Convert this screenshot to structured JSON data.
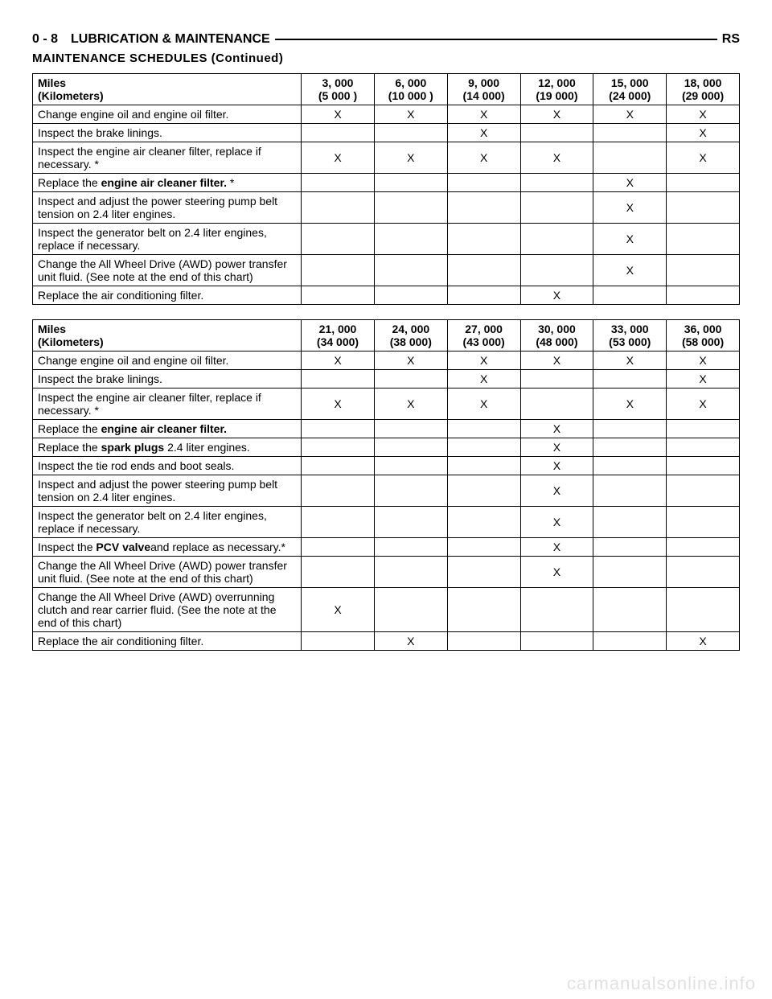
{
  "header": {
    "left": "0 - 8 LUBRICATION & MAINTENANCE",
    "right": "RS",
    "sub": "MAINTENANCE SCHEDULES (Continued)"
  },
  "tables": [
    {
      "miles_label": "Miles",
      "km_label": "(Kilometers)",
      "intervals": [
        {
          "miles": "3, 000",
          "km": "(5 000 )"
        },
        {
          "miles": "6, 000",
          "km": "(10 000 )"
        },
        {
          "miles": "9, 000",
          "km": "(14 000)"
        },
        {
          "miles": "12, 000",
          "km": "(19 000)"
        },
        {
          "miles": "15, 000",
          "km": "(24 000)"
        },
        {
          "miles": "18, 000",
          "km": "(29 000)"
        }
      ],
      "rows": [
        {
          "text_parts": [
            {
              "t": "Change engine oil and engine oil filter."
            }
          ],
          "marks": [
            "X",
            "X",
            "X",
            "X",
            "X",
            "X"
          ]
        },
        {
          "text_parts": [
            {
              "t": "Inspect the brake linings."
            }
          ],
          "marks": [
            "",
            "",
            "X",
            "",
            "",
            "X"
          ]
        },
        {
          "text_parts": [
            {
              "t": "Inspect the engine air cleaner filter, replace if necessary. *"
            }
          ],
          "marks": [
            "X",
            "X",
            "X",
            "X",
            "",
            "X"
          ]
        },
        {
          "text_parts": [
            {
              "t": "Replace the "
            },
            {
              "t": "engine air cleaner filter.",
              "b": true
            },
            {
              "t": " *"
            }
          ],
          "marks": [
            "",
            "",
            "",
            "",
            "X",
            ""
          ]
        },
        {
          "text_parts": [
            {
              "t": "Inspect and adjust the power steering pump belt tension on 2.4 liter engines."
            }
          ],
          "marks": [
            "",
            "",
            "",
            "",
            "X",
            ""
          ]
        },
        {
          "text_parts": [
            {
              "t": "Inspect the generator belt on 2.4 liter engines, replace if necessary."
            }
          ],
          "marks": [
            "",
            "",
            "",
            "",
            "X",
            ""
          ]
        },
        {
          "text_parts": [
            {
              "t": "Change the All Wheel Drive (AWD) power transfer unit fluid. (See note at the end of this chart)"
            }
          ],
          "marks": [
            "",
            "",
            "",
            "",
            "X",
            ""
          ]
        },
        {
          "text_parts": [
            {
              "t": "Replace the air conditioning filter."
            }
          ],
          "marks": [
            "",
            "",
            "",
            "X",
            "",
            ""
          ]
        }
      ]
    },
    {
      "miles_label": "Miles",
      "km_label": "(Kilometers)",
      "intervals": [
        {
          "miles": "21, 000",
          "km": "(34 000)"
        },
        {
          "miles": "24, 000",
          "km": "(38 000)"
        },
        {
          "miles": "27, 000",
          "km": "(43 000)"
        },
        {
          "miles": "30, 000",
          "km": "(48 000)"
        },
        {
          "miles": "33, 000",
          "km": "(53 000)"
        },
        {
          "miles": "36, 000",
          "km": "(58 000)"
        }
      ],
      "rows": [
        {
          "text_parts": [
            {
              "t": "Change engine oil and engine oil filter."
            }
          ],
          "marks": [
            "X",
            "X",
            "X",
            "X",
            "X",
            "X"
          ]
        },
        {
          "text_parts": [
            {
              "t": "Inspect the brake linings."
            }
          ],
          "marks": [
            "",
            "",
            "X",
            "",
            "",
            "X"
          ]
        },
        {
          "text_parts": [
            {
              "t": "Inspect the engine air cleaner filter, replace if necessary. *"
            }
          ],
          "marks": [
            "X",
            "X",
            "X",
            "",
            "X",
            "X"
          ]
        },
        {
          "text_parts": [
            {
              "t": "Replace the "
            },
            {
              "t": "engine air cleaner filter.",
              "b": true
            }
          ],
          "marks": [
            "",
            "",
            "",
            "X",
            "",
            ""
          ]
        },
        {
          "text_parts": [
            {
              "t": "Replace the "
            },
            {
              "t": "spark plugs",
              "b": true
            },
            {
              "t": " 2.4 liter engines."
            }
          ],
          "marks": [
            "",
            "",
            "",
            "X",
            "",
            ""
          ]
        },
        {
          "text_parts": [
            {
              "t": "Inspect the tie rod ends and boot seals."
            }
          ],
          "marks": [
            "",
            "",
            "",
            "X",
            "",
            ""
          ]
        },
        {
          "text_parts": [
            {
              "t": "Inspect and adjust the power steering pump belt tension on 2.4 liter engines."
            }
          ],
          "marks": [
            "",
            "",
            "",
            "X",
            "",
            ""
          ]
        },
        {
          "text_parts": [
            {
              "t": "Inspect the generator belt on 2.4 liter engines, replace if necessary."
            }
          ],
          "marks": [
            "",
            "",
            "",
            "X",
            "",
            ""
          ]
        },
        {
          "text_parts": [
            {
              "t": "Inspect the "
            },
            {
              "t": "PCV valve",
              "b": true
            },
            {
              "t": "and replace as necessary.*"
            }
          ],
          "marks": [
            "",
            "",
            "",
            "X",
            "",
            ""
          ]
        },
        {
          "text_parts": [
            {
              "t": "Change the All Wheel Drive (AWD) power transfer unit fluid. (See note at the end of this chart)"
            }
          ],
          "marks": [
            "",
            "",
            "",
            "X",
            "",
            ""
          ]
        },
        {
          "text_parts": [
            {
              "t": "Change the All Wheel Drive (AWD) overrunning clutch and rear carrier fluid. (See the note at the end of this chart)"
            }
          ],
          "marks": [
            "X",
            "",
            "",
            "",
            "",
            ""
          ]
        },
        {
          "text_parts": [
            {
              "t": "Replace the air conditioning filter."
            }
          ],
          "marks": [
            "",
            "X",
            "",
            "",
            "",
            "X"
          ]
        }
      ]
    }
  ],
  "watermark": "carmanualsonline.info"
}
